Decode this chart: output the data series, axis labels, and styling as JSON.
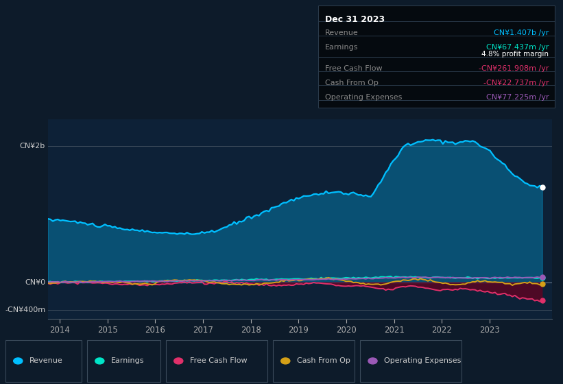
{
  "bg_color": "#0d1b2a",
  "plot_bg_color": "#0d2137",
  "y_label_top": "CN¥2b",
  "y_label_mid": "CN¥0",
  "y_label_bot": "-CN¥400m",
  "x_ticks": [
    2014,
    2015,
    2016,
    2017,
    2018,
    2019,
    2020,
    2021,
    2022,
    2023
  ],
  "ylim_min": -530000000,
  "ylim_max": 2400000000,
  "y_zero": 0,
  "y_top": 2000000000,
  "y_bot": -400000000,
  "legend_items": [
    "Revenue",
    "Earnings",
    "Free Cash Flow",
    "Cash From Op",
    "Operating Expenses"
  ],
  "legend_colors": [
    "#00bfff",
    "#00e5c8",
    "#e0306a",
    "#d4a017",
    "#9b59b6"
  ],
  "info_box": {
    "date": "Dec 31 2023",
    "revenue_label": "Revenue",
    "revenue_value": "CN¥1.407b /yr",
    "revenue_color": "#00bfff",
    "earnings_label": "Earnings",
    "earnings_value": "CN¥67.437m /yr",
    "earnings_color": "#00e5c8",
    "margin_value": "4.8% profit margin",
    "margin_color": "#ffffff",
    "fcf_label": "Free Cash Flow",
    "fcf_value": "-CN¥261.908m /yr",
    "fcf_color": "#e0306a",
    "cashfromop_label": "Cash From Op",
    "cashfromop_value": "-CN¥22.737m /yr",
    "cashfromop_color": "#e0306a",
    "opex_label": "Operating Expenses",
    "opex_value": "CN¥77.225m /yr",
    "opex_color": "#9b59b6"
  },
  "revenue_color": "#00bfff",
  "earnings_color": "#00e5c8",
  "fcf_color": "#e0306a",
  "cashfromop_color": "#d4a017",
  "opex_color": "#9b59b6"
}
